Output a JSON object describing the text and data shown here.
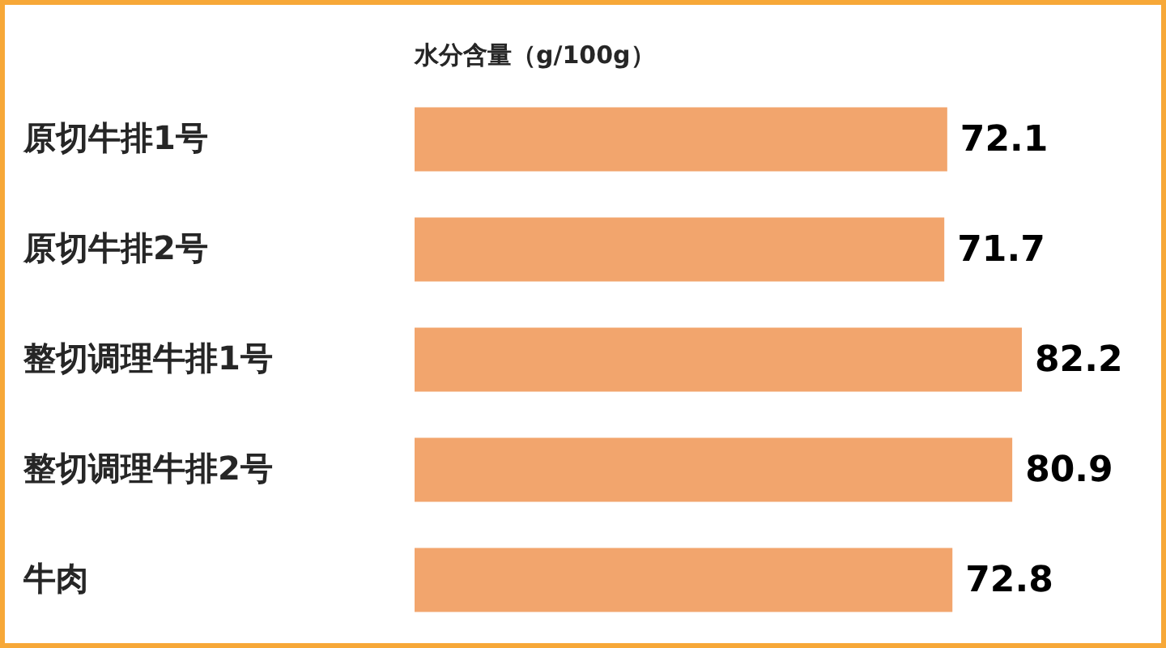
{
  "chart_data": {
    "type": "bar",
    "orientation": "horizontal",
    "title": "水分含量（g/100g）",
    "categories": [
      "原切牛排1号",
      "原切牛排2号",
      "整切调理牛排1号",
      "整切调理牛排2号",
      "牛肉"
    ],
    "values": [
      72.1,
      71.7,
      82.2,
      80.9,
      72.8
    ],
    "color": "#f2a56d",
    "data_labels": true
  }
}
